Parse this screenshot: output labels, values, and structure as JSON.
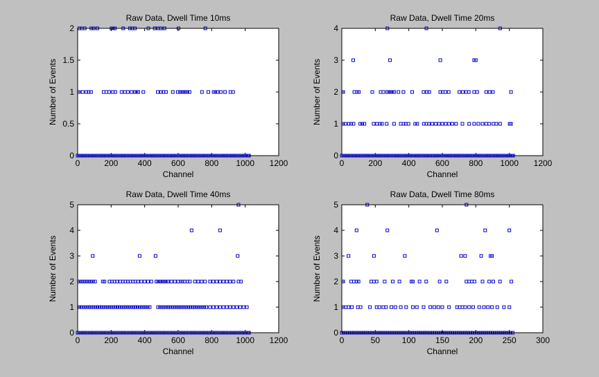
{
  "figure": {
    "background": "#c0c0c0",
    "marker_color": "#0000cc",
    "marker": "square"
  },
  "chart_data": [
    {
      "type": "scatter",
      "title": "Raw Data, Dwell Time 10ms",
      "xlabel": "Channel",
      "ylabel": "Number of Events",
      "xlim": [
        0,
        1200
      ],
      "ylim": [
        0,
        2
      ],
      "xticks": [
        0,
        200,
        400,
        600,
        800,
        1000,
        1200
      ],
      "yticks": [
        0,
        0.5,
        1,
        1.5,
        2
      ],
      "ytick_labels": [
        "0",
        "0.5",
        "1",
        "1.5",
        "2"
      ],
      "baseline": {
        "y": 0,
        "x_from": 0,
        "x_to": 1023,
        "step": 8
      },
      "series": [
        {
          "y": 1,
          "x": [
            8,
            30,
            52,
            66,
            80,
            155,
            172,
            188,
            210,
            225,
            262,
            282,
            300,
            322,
            342,
            352,
            362,
            392,
            478,
            498,
            512,
            528,
            568,
            598,
            612,
            622,
            632,
            645,
            655,
            668,
            742,
            780,
            812,
            822,
            835,
            855,
            880,
            912,
            928
          ]
        },
        {
          "y": 2,
          "x": [
            10,
            25,
            42,
            82,
            95,
            118,
            202,
            212,
            222,
            272,
            312,
            326,
            342,
            422,
            460,
            480,
            496,
            518,
            602,
            762
          ]
        }
      ]
    },
    {
      "type": "scatter",
      "title": "Raw Data, Dwell Time 20ms",
      "xlabel": "Channel",
      "ylabel": "Number of Events",
      "xlim": [
        0,
        1200
      ],
      "ylim": [
        0,
        4
      ],
      "xticks": [
        0,
        200,
        400,
        600,
        800,
        1000,
        1200
      ],
      "yticks": [
        0,
        1,
        2,
        3,
        4
      ],
      "ytick_labels": [
        "0",
        "1",
        "2",
        "3",
        "4"
      ],
      "baseline": {
        "y": 0,
        "x_from": 0,
        "x_to": 1023,
        "step": 8
      },
      "series": [
        {
          "y": 1,
          "x": [
            8,
            22,
            42,
            56,
            70,
            110,
            122,
            135,
            190,
            210,
            228,
            240,
            268,
            312,
            352,
            368,
            382,
            398,
            438,
            450,
            490,
            505,
            520,
            540,
            560,
            580,
            600,
            620,
            640,
            660,
            682,
            720,
            760,
            790,
            815,
            840,
            862,
            880,
            905,
            922,
            945,
            1002,
            1010
          ]
        },
        {
          "y": 2,
          "x": [
            8,
            75,
            92,
            102,
            182,
            232,
            248,
            272,
            282,
            292,
            302,
            312,
            338,
            368,
            420,
            488,
            508,
            522,
            588,
            602,
            618,
            638,
            702,
            722,
            742,
            758,
            790,
            808,
            862,
            882,
            902,
            1010
          ]
        },
        {
          "y": 3,
          "x": [
            68,
            288,
            588,
            790,
            800
          ]
        },
        {
          "y": 4,
          "x": [
            272,
            505,
            945
          ]
        }
      ]
    },
    {
      "type": "scatter",
      "title": "Raw Data, Dwell Time 40ms",
      "xlabel": "Channel",
      "ylabel": "Number of Events",
      "xlim": [
        0,
        1200
      ],
      "ylim": [
        0,
        5
      ],
      "xticks": [
        0,
        200,
        400,
        600,
        800,
        1000,
        1200
      ],
      "yticks": [
        0,
        1,
        2,
        3,
        4,
        5
      ],
      "ytick_labels": [
        "0",
        "1",
        "2",
        "3",
        "4",
        "5"
      ],
      "baseline": {
        "y": 0,
        "x_from": 0,
        "x_to": 1023,
        "step": 8
      },
      "series": [
        {
          "y": 1,
          "x": [
            10,
            22,
            34,
            46,
            58,
            70,
            82,
            94,
            106,
            118,
            130,
            142,
            154,
            166,
            178,
            190,
            202,
            214,
            226,
            238,
            250,
            262,
            274,
            286,
            298,
            310,
            322,
            334,
            346,
            358,
            370,
            382,
            394,
            406,
            418,
            430,
            480,
            492,
            504,
            516,
            528,
            540,
            552,
            564,
            576,
            588,
            600,
            612,
            624,
            636,
            648,
            660,
            672,
            684,
            696,
            708,
            720,
            732,
            744,
            756,
            768,
            790,
            810,
            830,
            850,
            870,
            890,
            910,
            930,
            950,
            970,
            990,
            1010
          ]
        },
        {
          "y": 2,
          "x": [
            8,
            20,
            32,
            44,
            56,
            68,
            80,
            92,
            104,
            150,
            160,
            190,
            205,
            220,
            235,
            255,
            270,
            285,
            300,
            315,
            330,
            345,
            360,
            380,
            400,
            420,
            440,
            470,
            480,
            490,
            500,
            510,
            520,
            530,
            540,
            560,
            580,
            600,
            615,
            625,
            640,
            655,
            670,
            700,
            720,
            740,
            760,
            790,
            810,
            830,
            850,
            870,
            890,
            910,
            930,
            960,
            975
          ]
        },
        {
          "y": 3,
          "x": [
            90,
            370,
            465,
            955
          ]
        },
        {
          "y": 4,
          "x": [
            680,
            850
          ]
        },
        {
          "y": 5,
          "x": [
            960
          ]
        }
      ]
    },
    {
      "type": "scatter",
      "title": "Raw Data, Dwell Time 80ms",
      "xlabel": "Channel",
      "ylabel": "Number of Events",
      "xlim": [
        0,
        300
      ],
      "ylim": [
        0,
        5
      ],
      "xticks": [
        0,
        50,
        100,
        150,
        200,
        250,
        300
      ],
      "yticks": [
        0,
        1,
        2,
        3,
        4,
        5
      ],
      "ytick_labels": [
        "0",
        "1",
        "2",
        "3",
        "4",
        "5"
      ],
      "baseline": {
        "y": 0,
        "x_from": 0,
        "x_to": 255,
        "step": 3
      },
      "series": [
        {
          "y": 1,
          "x": [
            2,
            6,
            10,
            15,
            24,
            28,
            42,
            52,
            56,
            62,
            66,
            74,
            80,
            88,
            96,
            106,
            112,
            122,
            132,
            138,
            144,
            150,
            160,
            172,
            176,
            180,
            184,
            190,
            196,
            205,
            212,
            218,
            224,
            232,
            242,
            250
          ]
        },
        {
          "y": 2,
          "x": [
            2,
            14,
            18,
            22,
            25,
            44,
            48,
            52,
            64,
            76,
            86,
            104,
            106,
            116,
            126,
            146,
            156,
            186,
            190,
            194,
            198,
            210,
            220,
            226,
            236,
            253
          ]
        },
        {
          "y": 3,
          "x": [
            10,
            48,
            94,
            178,
            184,
            208,
            222,
            224
          ]
        },
        {
          "y": 4,
          "x": [
            22,
            68,
            142,
            214,
            250
          ]
        },
        {
          "y": 5,
          "x": [
            38,
            186
          ]
        }
      ]
    }
  ]
}
